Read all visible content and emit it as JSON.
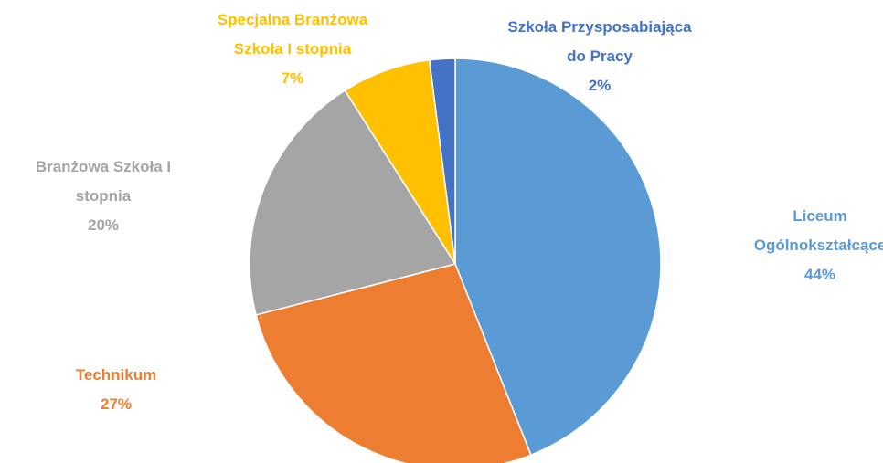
{
  "chart_data": {
    "type": "pie",
    "categories": [
      "Liceum Ogólnokształcące",
      "Technikum",
      "Branżowa Szkoła I stopnia",
      "Specjalna Branżowa Szkoła I stopnia",
      "Szkoła Przysposabiająca do Pracy"
    ],
    "values": [
      44,
      27,
      20,
      7,
      2
    ],
    "value_labels": [
      "44%",
      "27%",
      "20%",
      "7%",
      "2%"
    ],
    "colors": [
      "#5b9bd5",
      "#ed7d31",
      "#a5a5a5",
      "#ffc000",
      "#4472c4"
    ]
  }
}
